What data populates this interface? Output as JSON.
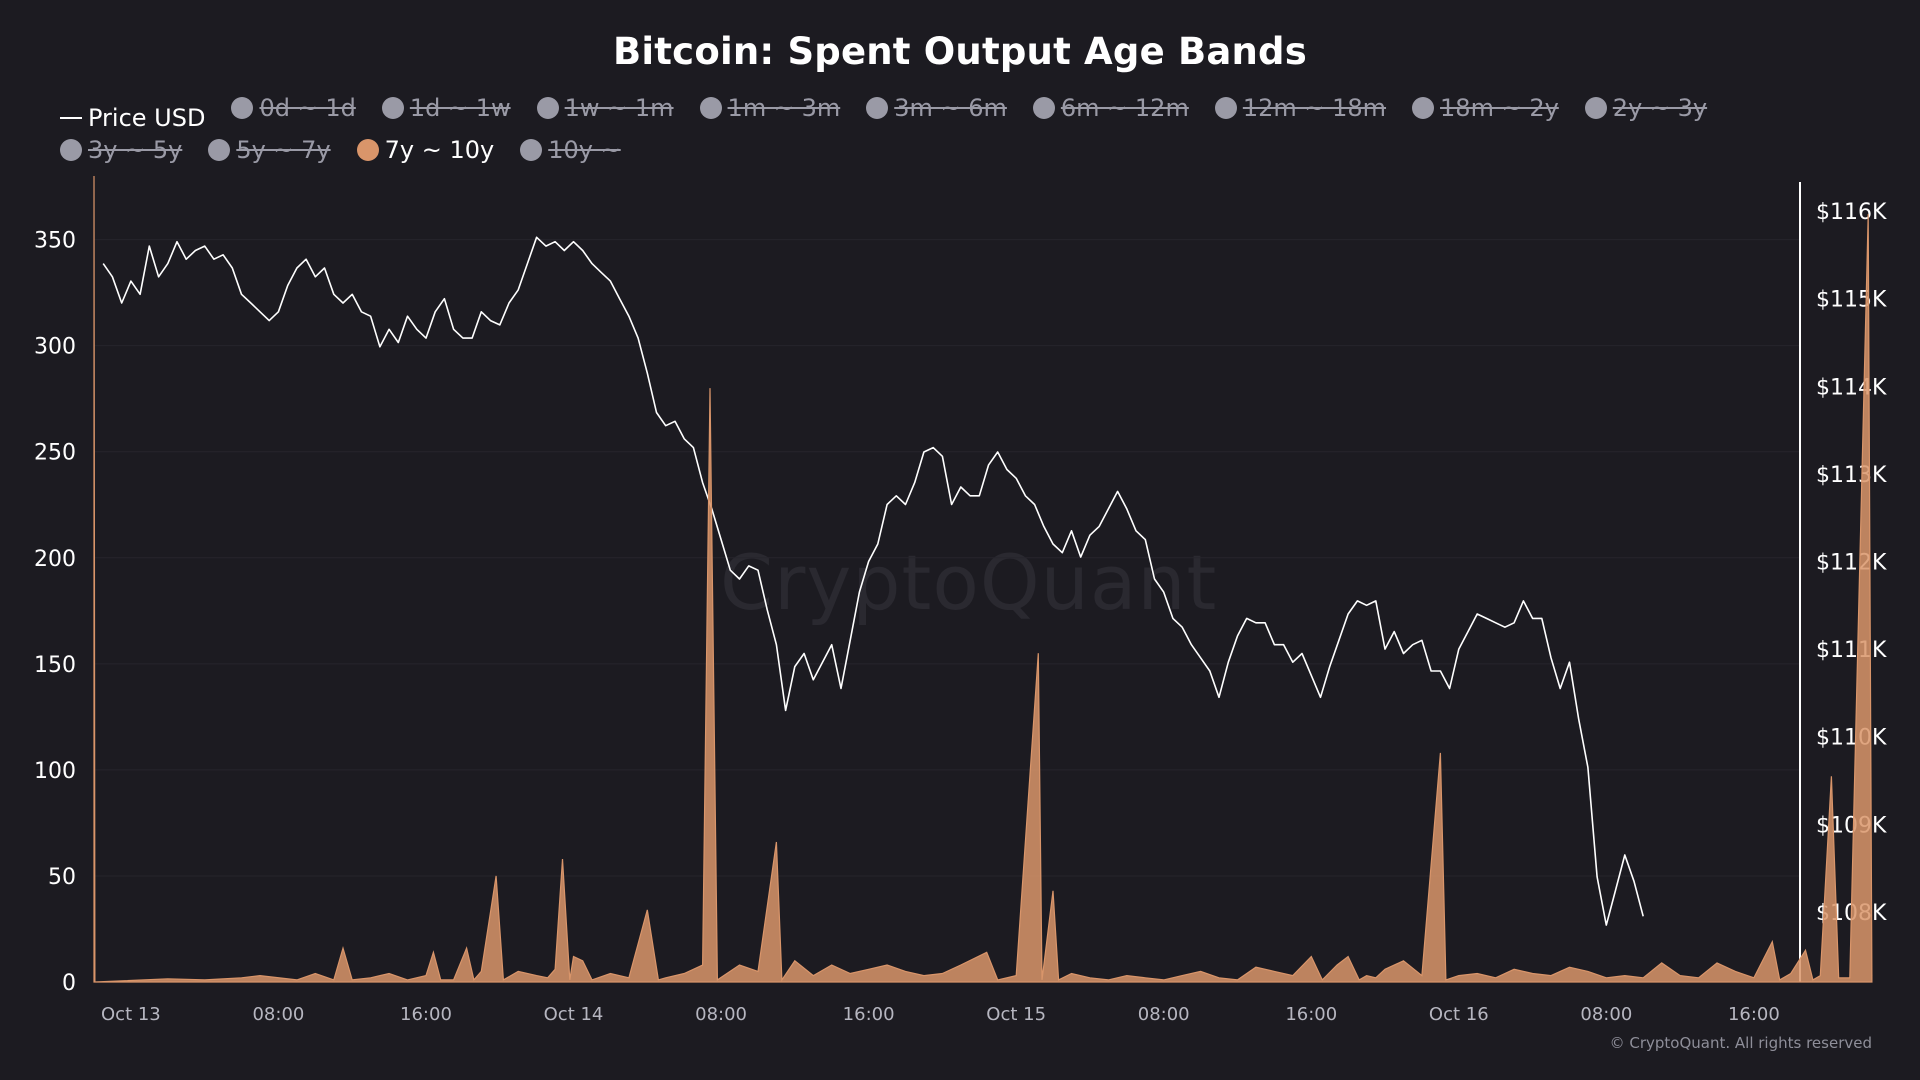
{
  "chart_data": {
    "type": "line",
    "title": "Bitcoin: Spent Output Age Bands",
    "watermark": "CryptoQuant",
    "copyright": "© CryptoQuant. All rights reserved",
    "legend": [
      {
        "name": "Price USD",
        "enabled": true,
        "marker": "line",
        "color": "#ffffff"
      },
      {
        "name": "0d ~ 1d",
        "enabled": false,
        "marker": "circle",
        "color": "#9a9aa6"
      },
      {
        "name": "1d ~ 1w",
        "enabled": false,
        "marker": "circle",
        "color": "#9a9aa6"
      },
      {
        "name": "1w ~ 1m",
        "enabled": false,
        "marker": "circle",
        "color": "#9a9aa6"
      },
      {
        "name": "1m ~ 3m",
        "enabled": false,
        "marker": "circle",
        "color": "#9a9aa6"
      },
      {
        "name": "3m ~ 6m",
        "enabled": false,
        "marker": "circle",
        "color": "#9a9aa6"
      },
      {
        "name": "6m ~ 12m",
        "enabled": false,
        "marker": "circle",
        "color": "#9a9aa6"
      },
      {
        "name": "12m ~ 18m",
        "enabled": false,
        "marker": "circle",
        "color": "#9a9aa6"
      },
      {
        "name": "18m ~ 2y",
        "enabled": false,
        "marker": "circle",
        "color": "#9a9aa6"
      },
      {
        "name": "2y ~ 3y",
        "enabled": false,
        "marker": "circle",
        "color": "#9a9aa6"
      },
      {
        "name": "3y ~ 5y",
        "enabled": false,
        "marker": "circle",
        "color": "#9a9aa6"
      },
      {
        "name": "5y ~ 7y",
        "enabled": false,
        "marker": "circle",
        "color": "#9a9aa6"
      },
      {
        "name": "7y ~ 10y",
        "enabled": true,
        "marker": "circle",
        "color": "#d9956a"
      },
      {
        "name": "10y ~",
        "enabled": false,
        "marker": "circle",
        "color": "#9a9aa6"
      }
    ],
    "x_ticks": [
      "Oct 13",
      "08:00",
      "16:00",
      "Oct 14",
      "08:00",
      "16:00",
      "Oct 15",
      "08:00",
      "16:00",
      "Oct 16",
      "08:00",
      "16:00"
    ],
    "x_range_hours": [
      -2,
      90.5
    ],
    "y_left": {
      "ticks": [
        0,
        50,
        100,
        150,
        200,
        250,
        300,
        350
      ],
      "range": [
        0,
        380
      ]
    },
    "y_right": {
      "ticks": [
        108000,
        109000,
        110000,
        111000,
        112000,
        113000,
        114000,
        115000,
        116000
      ],
      "tick_labels": [
        "$108K",
        "$109K",
        "$110K",
        "$111K",
        "$112K",
        "$113K",
        "$114K",
        "$115K",
        "$116K"
      ],
      "range": [
        107200,
        116400
      ]
    },
    "series": [
      {
        "name": "Price USD",
        "axis": "right",
        "color": "#ffffff",
        "points": [
          [
            -1.5,
            115400
          ],
          [
            -1,
            115250
          ],
          [
            -0.5,
            114950
          ],
          [
            0,
            115200
          ],
          [
            0.5,
            115050
          ],
          [
            1,
            115600
          ],
          [
            1.5,
            115250
          ],
          [
            2,
            115400
          ],
          [
            2.5,
            115650
          ],
          [
            3,
            115450
          ],
          [
            3.5,
            115550
          ],
          [
            4,
            115600
          ],
          [
            4.5,
            115450
          ],
          [
            5,
            115500
          ],
          [
            5.5,
            115350
          ],
          [
            6,
            115050
          ],
          [
            6.5,
            114950
          ],
          [
            7,
            114850
          ],
          [
            7.5,
            114750
          ],
          [
            8,
            114850
          ],
          [
            8.5,
            115150
          ],
          [
            9,
            115350
          ],
          [
            9.5,
            115450
          ],
          [
            10,
            115250
          ],
          [
            10.5,
            115350
          ],
          [
            11,
            115050
          ],
          [
            11.5,
            114950
          ],
          [
            12,
            115050
          ],
          [
            12.5,
            114850
          ],
          [
            13,
            114800
          ],
          [
            13.5,
            114450
          ],
          [
            14,
            114650
          ],
          [
            14.5,
            114500
          ],
          [
            15,
            114800
          ],
          [
            15.5,
            114650
          ],
          [
            16,
            114550
          ],
          [
            16.5,
            114850
          ],
          [
            17,
            115000
          ],
          [
            17.5,
            114650
          ],
          [
            18,
            114550
          ],
          [
            18.5,
            114550
          ],
          [
            19,
            114850
          ],
          [
            19.5,
            114750
          ],
          [
            20,
            114700
          ],
          [
            20.5,
            114950
          ],
          [
            21,
            115100
          ],
          [
            21.5,
            115400
          ],
          [
            22,
            115700
          ],
          [
            22.5,
            115600
          ],
          [
            23,
            115650
          ],
          [
            23.5,
            115550
          ],
          [
            24,
            115650
          ],
          [
            24.5,
            115550
          ],
          [
            25,
            115400
          ],
          [
            25.5,
            115300
          ],
          [
            26,
            115200
          ],
          [
            26.5,
            115000
          ],
          [
            27,
            114800
          ],
          [
            27.5,
            114550
          ],
          [
            28,
            114150
          ],
          [
            28.5,
            113700
          ],
          [
            29,
            113550
          ],
          [
            29.5,
            113600
          ],
          [
            30,
            113400
          ],
          [
            30.5,
            113300
          ],
          [
            31,
            112900
          ],
          [
            31.5,
            112600
          ],
          [
            32,
            112250
          ],
          [
            32.5,
            111900
          ],
          [
            33,
            111800
          ],
          [
            33.5,
            111950
          ],
          [
            34,
            111900
          ],
          [
            34.5,
            111450
          ],
          [
            35,
            111050
          ],
          [
            35.5,
            110300
          ],
          [
            36,
            110800
          ],
          [
            36.5,
            110950
          ],
          [
            37,
            110650
          ],
          [
            37.5,
            110850
          ],
          [
            38,
            111050
          ],
          [
            38.5,
            110550
          ],
          [
            39,
            111100
          ],
          [
            39.5,
            111650
          ],
          [
            40,
            112000
          ],
          [
            40.5,
            112200
          ],
          [
            41,
            112650
          ],
          [
            41.5,
            112750
          ],
          [
            42,
            112650
          ],
          [
            42.5,
            112900
          ],
          [
            43,
            113250
          ],
          [
            43.5,
            113300
          ],
          [
            44,
            113200
          ],
          [
            44.5,
            112650
          ],
          [
            45,
            112850
          ],
          [
            45.5,
            112750
          ],
          [
            46,
            112750
          ],
          [
            46.5,
            113100
          ],
          [
            47,
            113250
          ],
          [
            47.5,
            113050
          ],
          [
            48,
            112950
          ],
          [
            48.5,
            112750
          ],
          [
            49,
            112650
          ],
          [
            49.5,
            112400
          ],
          [
            50,
            112200
          ],
          [
            50.5,
            112100
          ],
          [
            51,
            112350
          ],
          [
            51.5,
            112050
          ],
          [
            52,
            112300
          ],
          [
            52.5,
            112400
          ],
          [
            53,
            112600
          ],
          [
            53.5,
            112800
          ],
          [
            54,
            112600
          ],
          [
            54.5,
            112350
          ],
          [
            55,
            112250
          ],
          [
            55.5,
            111800
          ],
          [
            56,
            111650
          ],
          [
            56.5,
            111350
          ],
          [
            57,
            111250
          ],
          [
            57.5,
            111050
          ],
          [
            58,
            110900
          ],
          [
            58.5,
            110750
          ],
          [
            59,
            110450
          ],
          [
            59.5,
            110850
          ],
          [
            60,
            111150
          ],
          [
            60.5,
            111350
          ],
          [
            61,
            111300
          ],
          [
            61.5,
            111300
          ],
          [
            62,
            111050
          ],
          [
            62.5,
            111050
          ],
          [
            63,
            110850
          ],
          [
            63.5,
            110950
          ],
          [
            64,
            110700
          ],
          [
            64.5,
            110450
          ],
          [
            65,
            110800
          ],
          [
            65.5,
            111100
          ],
          [
            66,
            111400
          ],
          [
            66.5,
            111550
          ],
          [
            67,
            111500
          ],
          [
            67.5,
            111550
          ],
          [
            68,
            111000
          ],
          [
            68.5,
            111200
          ],
          [
            69,
            110950
          ],
          [
            69.5,
            111050
          ],
          [
            70,
            111100
          ],
          [
            70.5,
            110750
          ],
          [
            71,
            110750
          ],
          [
            71.5,
            110550
          ],
          [
            72,
            111000
          ],
          [
            72.5,
            111200
          ],
          [
            73,
            111400
          ],
          [
            73.5,
            111350
          ],
          [
            74,
            111300
          ],
          [
            74.5,
            111250
          ],
          [
            75,
            111300
          ],
          [
            75.5,
            111550
          ],
          [
            76,
            111350
          ],
          [
            76.5,
            111350
          ],
          [
            77,
            110900
          ],
          [
            77.5,
            110550
          ],
          [
            78,
            110850
          ],
          [
            78.5,
            110200
          ],
          [
            79,
            109650
          ],
          [
            79.5,
            108400
          ],
          [
            80,
            107850
          ],
          [
            80.5,
            108250
          ],
          [
            81,
            108650
          ],
          [
            81.5,
            108350
          ],
          [
            82,
            107950
          ]
        ]
      },
      {
        "name": "7y ~ 10y",
        "axis": "left",
        "color": "#d9956a",
        "points": [
          [
            -2,
            380
          ],
          [
            -1.95,
            0
          ],
          [
            2,
            1.5
          ],
          [
            4,
            1
          ],
          [
            6,
            2
          ],
          [
            7,
            3
          ],
          [
            9,
            1
          ],
          [
            10,
            4
          ],
          [
            11,
            1
          ],
          [
            11.5,
            16
          ],
          [
            12,
            1
          ],
          [
            13,
            2
          ],
          [
            14,
            4
          ],
          [
            15,
            1
          ],
          [
            16,
            3
          ],
          [
            16.4,
            14
          ],
          [
            16.8,
            1
          ],
          [
            17.5,
            1
          ],
          [
            18.2,
            16
          ],
          [
            18.6,
            1
          ],
          [
            19,
            5
          ],
          [
            19.8,
            50
          ],
          [
            20.2,
            1
          ],
          [
            21,
            5
          ],
          [
            22,
            3
          ],
          [
            22.6,
            2
          ],
          [
            23,
            6
          ],
          [
            23.4,
            58
          ],
          [
            23.8,
            1
          ],
          [
            24,
            12
          ],
          [
            24.5,
            10
          ],
          [
            25,
            1
          ],
          [
            26,
            4
          ],
          [
            27,
            2
          ],
          [
            28,
            34
          ],
          [
            28.6,
            1
          ],
          [
            29,
            2
          ],
          [
            30,
            4
          ],
          [
            31,
            8
          ],
          [
            31.4,
            280
          ],
          [
            31.8,
            1
          ],
          [
            33,
            8
          ],
          [
            34,
            5
          ],
          [
            35,
            66
          ],
          [
            35.3,
            1
          ],
          [
            36,
            10
          ],
          [
            37,
            3
          ],
          [
            38,
            8
          ],
          [
            39,
            4
          ],
          [
            40,
            6
          ],
          [
            41,
            8
          ],
          [
            42,
            5
          ],
          [
            43,
            3
          ],
          [
            44,
            4
          ],
          [
            45,
            8
          ],
          [
            46.4,
            14
          ],
          [
            47,
            1
          ],
          [
            48,
            3
          ],
          [
            49.2,
            155
          ],
          [
            49.4,
            1
          ],
          [
            50,
            43
          ],
          [
            50.3,
            1
          ],
          [
            51,
            4
          ],
          [
            52,
            2
          ],
          [
            53,
            1
          ],
          [
            54,
            3
          ],
          [
            55,
            2
          ],
          [
            56,
            1
          ],
          [
            57,
            3
          ],
          [
            58,
            5
          ],
          [
            59,
            2
          ],
          [
            60,
            1
          ],
          [
            61,
            7
          ],
          [
            62,
            5
          ],
          [
            63,
            3
          ],
          [
            64,
            12
          ],
          [
            64.6,
            1
          ],
          [
            65.4,
            8
          ],
          [
            66,
            12
          ],
          [
            66.6,
            1
          ],
          [
            67,
            3
          ],
          [
            67.5,
            2
          ],
          [
            68,
            6
          ],
          [
            69,
            10
          ],
          [
            70,
            3
          ],
          [
            71,
            108
          ],
          [
            71.3,
            1
          ],
          [
            72,
            3
          ],
          [
            73,
            4
          ],
          [
            74,
            2
          ],
          [
            75,
            6
          ],
          [
            76,
            4
          ],
          [
            77,
            3
          ],
          [
            78,
            7
          ],
          [
            79,
            5
          ],
          [
            80,
            2
          ],
          [
            81,
            3
          ],
          [
            82,
            2
          ],
          [
            83,
            9
          ],
          [
            84,
            3
          ],
          [
            85,
            2
          ],
          [
            86,
            9
          ],
          [
            87,
            5
          ],
          [
            88,
            2
          ],
          [
            89,
            19
          ],
          [
            89.4,
            1
          ],
          [
            90,
            4
          ],
          [
            90.8,
            15
          ],
          [
            91.2,
            1
          ],
          [
            91.6,
            3
          ],
          [
            92.2,
            97
          ],
          [
            92.6,
            2
          ],
          [
            93.2,
            2
          ],
          [
            94.2,
            362
          ],
          [
            94.4,
            2
          ]
        ]
      }
    ]
  }
}
